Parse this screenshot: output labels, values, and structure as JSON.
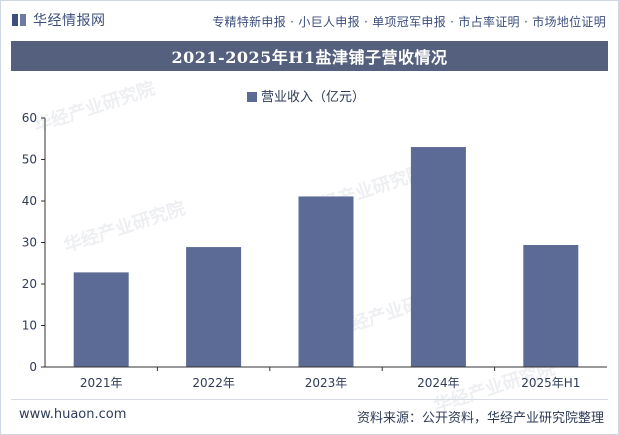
{
  "header": {
    "logo_text": "华经情报网",
    "services": "专精特新申报 · 小巨人申报 · 单项冠军申报 · 市占率证明 · 市场地位证明"
  },
  "watermark": "华经产业研究院",
  "chart_data": {
    "type": "bar",
    "title": "2021-2025年H1盐津铺子营收情况",
    "categories": [
      "2021年",
      "2022年",
      "2023年",
      "2024年",
      "2025年H1"
    ],
    "series": [
      {
        "name": "营业收入（亿元）",
        "values": [
          22.8,
          28.9,
          41.1,
          53.0,
          29.4
        ],
        "color": "#5c6b96"
      }
    ],
    "ylim": [
      0,
      60
    ],
    "yticks": [
      0,
      10,
      20,
      30,
      40,
      50,
      60
    ],
    "grid": false,
    "legend": "top-center"
  },
  "footer": {
    "website": "www.huaon.com",
    "source": "资料来源：公开资料，华经产业研究院整理"
  },
  "colors": {
    "accent": "#54607e",
    "bar": "#5c6b96",
    "text": "#2f3b57"
  }
}
